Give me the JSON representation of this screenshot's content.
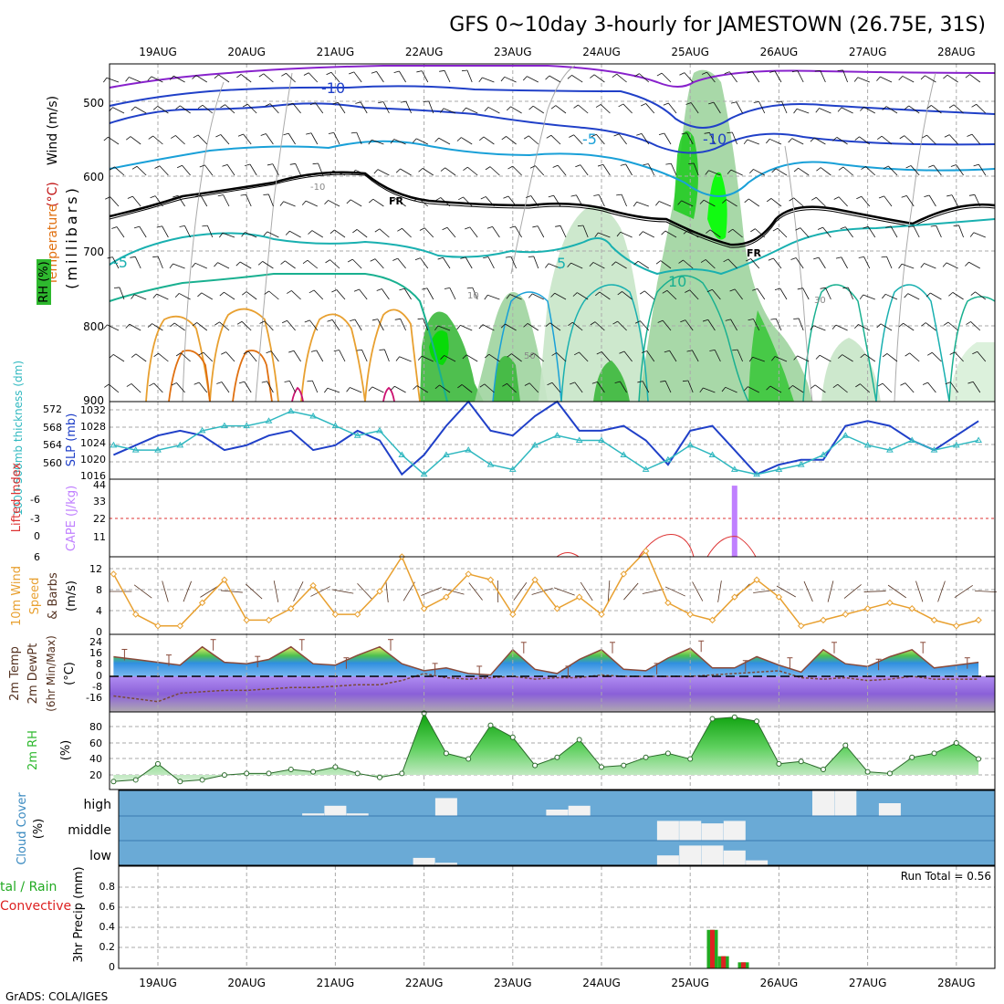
{
  "title": "GFS 0~10day 3-hourly for JAMESTOWN (26.75E, 31S)",
  "footer": "GrADS: COLA/IGES",
  "colors": {
    "axis": "#000000",
    "grid": "#aaaaaa",
    "wind10": "#e8a030",
    "barb": "#553322",
    "lifted": "#dd3333",
    "cape": "#c080ff",
    "slp": "#2040c8",
    "thick": "#30b8c0",
    "rh_fill": "#2eb82e",
    "cloud_bg": "#6aaad6",
    "cloud_fill": "#f2f2f2",
    "precip_total": "#22aa22",
    "precip_conv": "#dd2222",
    "temp_fill": "#7ecf3e",
    "dewpt": "#7a4a3a"
  },
  "x_axis": {
    "labels": [
      "19AUG",
      "20AUG",
      "21AUG",
      "22AUG",
      "23AUG",
      "24AUG",
      "25AUG",
      "26AUG",
      "27AUG",
      "28AUG"
    ]
  },
  "panels": {
    "upper": {
      "ylabel": "(millibars)",
      "legend_wind": "Wind (m/s)",
      "legend_temp_a": "Temperature",
      "legend_temp_b": "(°C)",
      "legend_rh": "RH (%)",
      "ticks": [
        "500",
        "600",
        "700",
        "800",
        "900"
      ],
      "contour_labels": [
        "-10",
        "-10",
        "-5",
        "-5",
        "5",
        "10",
        "FR",
        "FR",
        "-5",
        "-10"
      ],
      "rh_labels": [
        "-10",
        "10",
        "30",
        "50"
      ]
    },
    "slp": {
      "label_left": "1000-500mb thickness (dm)",
      "label_right": "SLP (mb)",
      "ticks_left": [
        "572",
        "568",
        "564",
        "560"
      ],
      "ticks_right": [
        "1032",
        "1028",
        "1024",
        "1020",
        "1016"
      ]
    },
    "cape": {
      "label_left": "Lifted Index",
      "label_right": "CAPE (J/kg)",
      "ticks_left": [
        "-6",
        "-3",
        "0",
        "3",
        "6"
      ],
      "ticks_right": [
        "44",
        "33",
        "22",
        "11"
      ]
    },
    "wind": {
      "label_a": "10m Wind",
      "label_b": "Speed",
      "label_c": "& Barbs",
      "unit": "(m/s)",
      "ticks": [
        "12",
        "8",
        "4",
        "0"
      ]
    },
    "temp": {
      "label_a": "2m Temp",
      "label_b": "2m DewPt",
      "label_c": "(6hr Min/Max)",
      "unit": "(°C)",
      "ticks": [
        "24",
        "16",
        "8",
        "0",
        "-8",
        "-16"
      ]
    },
    "rh": {
      "label": "2m RH",
      "unit": "(%)",
      "ticks": [
        "80",
        "60",
        "40",
        "20"
      ]
    },
    "cloud": {
      "label": "Cloud Cover",
      "unit": "(%)",
      "levels": [
        "high",
        "middle",
        "low"
      ]
    },
    "precip": {
      "label_a": "tal / Rain",
      "label_b": "Convective",
      "label_c": "3hr Precip (mm)",
      "ticks": [
        "0.8",
        "0.6",
        "0.4",
        "0.2",
        "0"
      ],
      "run_total": "Run Total = 0.56"
    }
  },
  "chart_data": [
    {
      "type": "line",
      "panel": "slp",
      "x_unit": "days since 19AUG 00Z",
      "series": [
        {
          "name": "SLP (mb)",
          "axis": "right",
          "x": [
            -0.5,
            -0.25,
            0,
            0.25,
            0.5,
            0.75,
            1,
            1.25,
            1.5,
            1.75,
            2,
            2.25,
            2.5,
            2.75,
            3,
            3.25,
            3.5,
            3.75,
            4,
            4.25,
            4.5,
            4.75,
            5,
            5.25,
            5.5,
            5.75,
            6,
            6.25,
            6.5,
            6.75,
            7,
            7.25,
            7.5,
            7.75,
            8,
            8.25,
            8.5,
            8.75,
            9,
            9.25
          ],
          "y": [
            1021,
            1023,
            1025,
            1026,
            1025,
            1022,
            1023,
            1025,
            1026,
            1022,
            1023,
            1026,
            1024,
            1017,
            1021,
            1027,
            1032,
            1026,
            1025,
            1029,
            1032,
            1026,
            1026,
            1027,
            1024,
            1019,
            1026,
            1027,
            1022,
            1017,
            1019,
            1020,
            1020,
            1027,
            1028,
            1027,
            1024,
            1022,
            1025,
            1028
          ]
        },
        {
          "name": "1000-500mb thickness (dm)",
          "axis": "left",
          "x": [
            -0.5,
            -0.25,
            0,
            0.25,
            0.5,
            0.75,
            1,
            1.25,
            1.5,
            1.75,
            2,
            2.25,
            2.5,
            2.75,
            3,
            3.25,
            3.5,
            3.75,
            4,
            4.25,
            4.5,
            4.75,
            5,
            5.25,
            5.5,
            5.75,
            6,
            6.25,
            6.5,
            6.75,
            7,
            7.25,
            7.5,
            7.75,
            8,
            8.25,
            8.5,
            8.75,
            9,
            9.25
          ],
          "y": [
            565,
            564,
            564,
            565,
            568,
            569,
            569,
            570,
            572,
            571,
            569,
            567,
            568,
            563,
            559,
            563,
            564,
            561,
            560,
            565,
            567,
            566,
            566,
            563,
            560,
            562,
            565,
            563,
            560,
            559,
            560,
            561,
            563,
            567,
            565,
            564,
            566,
            564,
            565,
            566
          ]
        }
      ]
    },
    {
      "type": "line",
      "panel": "wind",
      "x_unit": "days since 19AUG 00Z",
      "series": [
        {
          "name": "10m Wind Speed (m/s)",
          "x": [
            -0.5,
            -0.25,
            0,
            0.25,
            0.5,
            0.75,
            1,
            1.25,
            1.5,
            1.75,
            2,
            2.25,
            2.5,
            2.75,
            3,
            3.25,
            3.5,
            3.75,
            4,
            4.25,
            4.5,
            4.75,
            5,
            5.25,
            5.5,
            5.75,
            6,
            6.25,
            6.5,
            6.75,
            7,
            7.25,
            7.5,
            7.75,
            8,
            8.25,
            8.5,
            8.75,
            9,
            9.25
          ],
          "y": [
            10,
            3,
            1,
            1,
            5,
            9,
            2,
            2,
            4,
            8,
            3,
            3,
            7,
            13,
            4,
            6,
            10,
            9,
            3,
            9,
            4,
            6,
            3,
            10,
            14,
            5,
            3,
            2,
            6,
            9,
            6,
            1,
            2,
            3,
            4,
            5,
            4,
            2,
            1,
            2
          ]
        }
      ]
    },
    {
      "type": "line",
      "panel": "temp",
      "x_unit": "days since 19AUG 00Z",
      "series": [
        {
          "name": "2m Temp (°C)",
          "x": [
            -0.5,
            -0.25,
            0,
            0.25,
            0.5,
            0.75,
            1,
            1.25,
            1.5,
            1.75,
            2,
            2.25,
            2.5,
            2.75,
            3,
            3.25,
            3.5,
            3.75,
            4,
            4.25,
            4.5,
            4.75,
            5,
            5.25,
            5.5,
            5.75,
            6,
            6.25,
            6.5,
            6.75,
            7,
            7.25,
            7.5,
            7.75,
            8,
            8.25,
            8.5,
            8.75,
            9,
            9.25
          ],
          "y": [
            14,
            12,
            10,
            8,
            21,
            10,
            9,
            12,
            21,
            9,
            8,
            15,
            21,
            9,
            4,
            6,
            2,
            1,
            19,
            5,
            2,
            12,
            19,
            5,
            4,
            13,
            20,
            6,
            6,
            14,
            8,
            3,
            19,
            9,
            7,
            14,
            19,
            6,
            8,
            10
          ]
        },
        {
          "name": "2m DewPt (°C)",
          "x": [
            -0.5,
            -0.25,
            0,
            0.25,
            0.5,
            0.75,
            1,
            1.25,
            1.5,
            1.75,
            2,
            2.25,
            2.5,
            2.75,
            3,
            3.25,
            3.5,
            3.75,
            4,
            4.25,
            4.5,
            4.75,
            5,
            5.25,
            5.5,
            5.75,
            6,
            6.25,
            6.5,
            6.75,
            7,
            7.25,
            7.5,
            7.75,
            8,
            8.25,
            8.5,
            8.75,
            9,
            9.25
          ],
          "y": [
            -14,
            -16,
            -18,
            -12,
            -11,
            -10,
            -10,
            -9,
            -8,
            -8,
            -7,
            -6,
            -6,
            -3,
            2,
            -1,
            -2,
            -1,
            0,
            -2,
            -1,
            -1,
            1,
            0,
            0,
            0,
            0,
            1,
            2,
            3,
            4,
            -1,
            -2,
            -1,
            -3,
            -2,
            0,
            -2,
            -2,
            -2
          ]
        }
      ]
    },
    {
      "type": "area",
      "panel": "rh",
      "x_unit": "days since 19AUG 00Z",
      "series": [
        {
          "name": "2m RH (%)",
          "x": [
            -0.5,
            -0.25,
            0,
            0.25,
            0.5,
            0.75,
            1,
            1.25,
            1.5,
            1.75,
            2,
            2.25,
            2.5,
            2.75,
            3,
            3.25,
            3.5,
            3.75,
            4,
            4.25,
            4.5,
            4.75,
            5,
            5.25,
            5.5,
            5.75,
            6,
            6.25,
            6.5,
            6.75,
            7,
            7.25,
            7.5,
            7.75,
            8,
            8.25,
            8.5,
            8.75,
            9,
            9.25
          ],
          "y": [
            10,
            12,
            32,
            10,
            12,
            18,
            20,
            20,
            25,
            22,
            28,
            20,
            15,
            20,
            95,
            45,
            38,
            80,
            65,
            30,
            40,
            62,
            28,
            30,
            40,
            45,
            38,
            88,
            90,
            85,
            32,
            35,
            25,
            55,
            22,
            20,
            40,
            45,
            58,
            38
          ]
        }
      ]
    },
    {
      "type": "bar",
      "panel": "cloud",
      "x_unit": "days since 19AUG 00Z",
      "series": [
        {
          "name": "high",
          "x": [
            1.75,
            2,
            2.25,
            3.25,
            4.5,
            4.75,
            7.5,
            7.75,
            8.25
          ],
          "values": [
            10,
            40,
            10,
            70,
            25,
            40,
            100,
            100,
            50
          ]
        },
        {
          "name": "middle",
          "x": [
            5.75,
            6,
            6.25,
            6.5
          ],
          "values": [
            80,
            80,
            70,
            80
          ]
        },
        {
          "name": "low",
          "x": [
            3,
            3.25,
            5.75,
            6,
            6.25,
            6.5,
            6.75
          ],
          "values": [
            30,
            10,
            40,
            80,
            80,
            60,
            20
          ]
        }
      ]
    },
    {
      "type": "bar",
      "panel": "precip",
      "x_unit": "days since 19AUG 00Z",
      "series": [
        {
          "name": "Total / Rain",
          "x": [
            6.25,
            6.375,
            6.6
          ],
          "values": [
            0.38,
            0.12,
            0.06
          ]
        },
        {
          "name": "Convective",
          "x": [
            6.25,
            6.375,
            6.6
          ],
          "values": [
            0.38,
            0.12,
            0.06
          ]
        }
      ]
    },
    {
      "type": "bar",
      "panel": "cape",
      "x_unit": "days since 19AUG 00Z",
      "series": [
        {
          "name": "CAPE (J/kg)",
          "x": [
            6.5
          ],
          "values": [
            44
          ]
        }
      ]
    }
  ]
}
